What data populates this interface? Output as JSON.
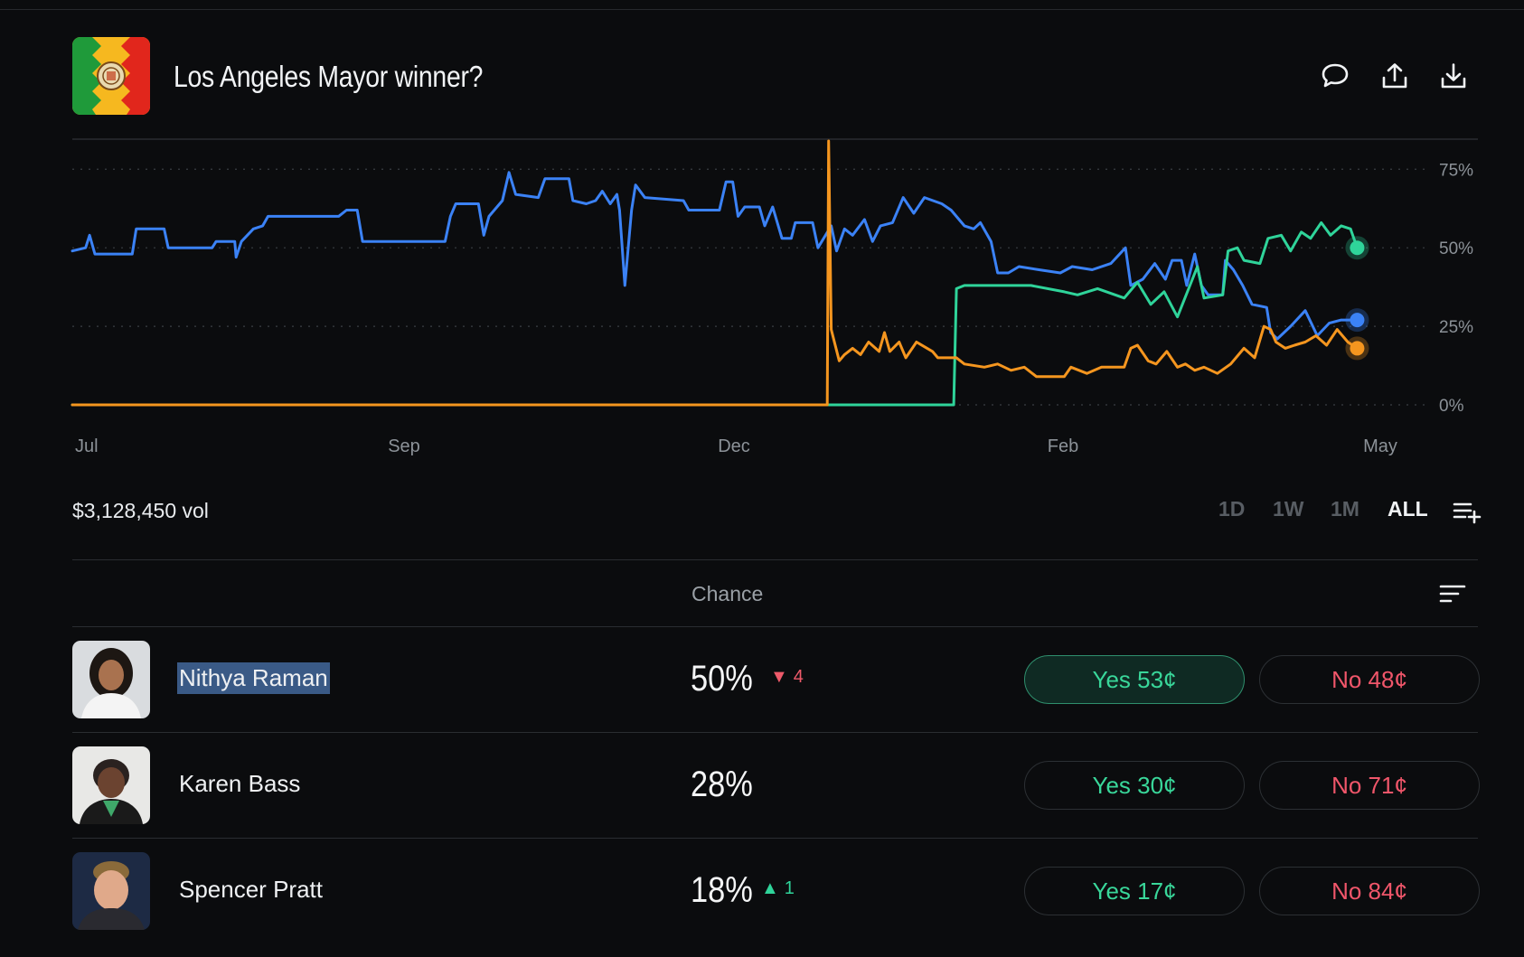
{
  "market": {
    "title": "Los Angeles Mayor winner?",
    "volume": "$3,128,450 vol"
  },
  "header_actions": [
    {
      "name": "comment-icon"
    },
    {
      "name": "share-icon"
    },
    {
      "name": "download-icon"
    }
  ],
  "ranges": [
    {
      "label": "1D",
      "active": false
    },
    {
      "label": "1W",
      "active": false
    },
    {
      "label": "1M",
      "active": false
    },
    {
      "label": "ALL",
      "active": true
    }
  ],
  "table": {
    "chance_header": "Chance"
  },
  "candidates": [
    {
      "name": "Nithya Raman",
      "chance": "50%",
      "delta": "4",
      "delta_dir": "down",
      "yes": "Yes 53¢",
      "no": "No 48¢",
      "selected": true
    },
    {
      "name": "Karen Bass",
      "chance": "28%",
      "delta": "",
      "delta_dir": "",
      "yes": "Yes 30¢",
      "no": "No 71¢",
      "selected": false
    },
    {
      "name": "Spencer Pratt",
      "chance": "18%",
      "delta": "1",
      "delta_dir": "up",
      "yes": "Yes 17¢",
      "no": "No 84¢",
      "selected": false
    }
  ],
  "chart_data": {
    "type": "line",
    "x_ticks": [
      "Jul",
      "Sep",
      "Dec",
      "Feb",
      "May"
    ],
    "y_ticks": [
      "0%",
      "25%",
      "50%",
      "75%"
    ],
    "ylim": [
      0,
      84
    ],
    "grid": true,
    "x_domain": [
      0,
      100
    ],
    "series": [
      {
        "color": "#3b82f6",
        "points": [
          [
            0,
            49
          ],
          [
            1,
            50
          ],
          [
            1.3,
            54
          ],
          [
            1.7,
            48
          ],
          [
            4.5,
            48
          ],
          [
            4.8,
            56
          ],
          [
            6.9,
            56
          ],
          [
            7.2,
            50
          ],
          [
            10.5,
            50
          ],
          [
            10.8,
            52
          ],
          [
            12.2,
            52
          ],
          [
            12.3,
            47
          ],
          [
            12.7,
            52
          ],
          [
            13.6,
            56
          ],
          [
            14.3,
            57
          ],
          [
            14.7,
            60
          ],
          [
            20,
            60
          ],
          [
            20.6,
            62
          ],
          [
            21.4,
            62
          ],
          [
            21.8,
            52
          ],
          [
            28,
            52
          ],
          [
            28.4,
            60
          ],
          [
            28.8,
            64
          ],
          [
            30.5,
            64
          ],
          [
            30.9,
            54
          ],
          [
            31.3,
            60
          ],
          [
            32.3,
            65
          ],
          [
            32.8,
            74
          ],
          [
            33.3,
            67
          ],
          [
            35,
            66
          ],
          [
            35.5,
            72
          ],
          [
            37.3,
            72
          ],
          [
            37.6,
            65
          ],
          [
            38.6,
            64
          ],
          [
            39.3,
            65
          ],
          [
            39.8,
            68
          ],
          [
            40.4,
            64
          ],
          [
            40.9,
            67
          ],
          [
            41.1,
            62
          ],
          [
            41.5,
            38
          ],
          [
            42,
            62
          ],
          [
            42.3,
            70
          ],
          [
            43,
            66
          ],
          [
            45.9,
            65
          ],
          [
            46.3,
            62
          ],
          [
            48.6,
            62
          ],
          [
            49.1,
            71
          ],
          [
            49.6,
            71
          ],
          [
            50,
            60
          ],
          [
            50.5,
            63
          ],
          [
            51.6,
            63
          ],
          [
            52,
            57
          ],
          [
            52.6,
            63
          ],
          [
            53.3,
            53
          ],
          [
            54,
            53
          ],
          [
            54.3,
            58
          ],
          [
            55.6,
            58
          ],
          [
            56,
            50
          ],
          [
            57,
            57
          ],
          [
            57.4,
            49
          ],
          [
            58,
            56
          ],
          [
            58.6,
            54
          ],
          [
            59.5,
            59
          ],
          [
            60.1,
            52
          ],
          [
            60.7,
            57
          ],
          [
            61.6,
            58
          ],
          [
            62.4,
            66
          ],
          [
            63.2,
            61
          ],
          [
            64,
            66
          ],
          [
            65.3,
            64
          ],
          [
            66,
            62
          ],
          [
            67,
            57
          ],
          [
            67.7,
            56
          ],
          [
            68.2,
            58
          ],
          [
            69,
            52
          ],
          [
            69.5,
            42
          ],
          [
            70.3,
            42
          ],
          [
            71.1,
            44
          ],
          [
            72.6,
            43
          ],
          [
            74.2,
            42
          ],
          [
            75.1,
            44
          ],
          [
            76.6,
            43
          ],
          [
            78,
            45
          ],
          [
            79.1,
            50
          ],
          [
            79.5,
            38
          ],
          [
            80.4,
            40
          ],
          [
            81.3,
            45
          ],
          [
            82.1,
            40
          ],
          [
            82.6,
            46
          ],
          [
            83.3,
            46
          ],
          [
            83.7,
            38
          ],
          [
            84.3,
            48
          ],
          [
            84.8,
            38
          ],
          [
            85.3,
            35
          ],
          [
            86.4,
            35
          ],
          [
            86.6,
            46
          ],
          [
            87.2,
            43
          ],
          [
            87.9,
            38
          ],
          [
            88.6,
            32
          ],
          [
            89.7,
            31
          ],
          [
            90,
            23
          ],
          [
            90.5,
            21
          ],
          [
            91.5,
            25
          ],
          [
            92.6,
            30
          ],
          [
            93.5,
            22
          ],
          [
            94.4,
            26
          ],
          [
            95.3,
            27
          ],
          [
            96.5,
            27
          ]
        ]
      },
      {
        "color": "#2fd49a",
        "points": [
          [
            0,
            0
          ],
          [
            66.2,
            0
          ],
          [
            66.4,
            37
          ],
          [
            67,
            38
          ],
          [
            70,
            38
          ],
          [
            72,
            38
          ],
          [
            74.5,
            36
          ],
          [
            75.5,
            35
          ],
          [
            77,
            37
          ],
          [
            79,
            34
          ],
          [
            80,
            39
          ],
          [
            81,
            32
          ],
          [
            82,
            36
          ],
          [
            83,
            28
          ],
          [
            84.5,
            44
          ],
          [
            85,
            34
          ],
          [
            86.4,
            35
          ],
          [
            86.8,
            49
          ],
          [
            87.5,
            50
          ],
          [
            88,
            46
          ],
          [
            89.2,
            45
          ],
          [
            89.8,
            53
          ],
          [
            90.8,
            54
          ],
          [
            91.5,
            49
          ],
          [
            92.3,
            55
          ],
          [
            93,
            53
          ],
          [
            93.8,
            58
          ],
          [
            94.5,
            54
          ],
          [
            95.3,
            57
          ],
          [
            96,
            56
          ],
          [
            96.5,
            50
          ]
        ]
      },
      {
        "color": "#f5961f",
        "points": [
          [
            0,
            0
          ],
          [
            56.7,
            0
          ],
          [
            56.8,
            84
          ],
          [
            57,
            24
          ],
          [
            57.3,
            19
          ],
          [
            57.6,
            14
          ],
          [
            58,
            16
          ],
          [
            58.6,
            18
          ],
          [
            59.2,
            16
          ],
          [
            59.8,
            20
          ],
          [
            60.6,
            17
          ],
          [
            61,
            23
          ],
          [
            61.4,
            17
          ],
          [
            62.1,
            20
          ],
          [
            62.6,
            15
          ],
          [
            63.4,
            20
          ],
          [
            64.6,
            17
          ],
          [
            65,
            15
          ],
          [
            66.1,
            15
          ],
          [
            66.4,
            15
          ],
          [
            67,
            13
          ],
          [
            68.5,
            12
          ],
          [
            69.5,
            13
          ],
          [
            70.5,
            11
          ],
          [
            71.5,
            12
          ],
          [
            72.4,
            9
          ],
          [
            73.4,
            9
          ],
          [
            74.5,
            9
          ],
          [
            75,
            12
          ],
          [
            76.2,
            10
          ],
          [
            77.3,
            12
          ],
          [
            78.1,
            12
          ],
          [
            79,
            12
          ],
          [
            79.5,
            18
          ],
          [
            80,
            19
          ],
          [
            80.8,
            14
          ],
          [
            81.4,
            13
          ],
          [
            82.2,
            17
          ],
          [
            83,
            12
          ],
          [
            83.6,
            13
          ],
          [
            84.3,
            11
          ],
          [
            85,
            12
          ],
          [
            86,
            10
          ],
          [
            87,
            13
          ],
          [
            88,
            18
          ],
          [
            88.8,
            15
          ],
          [
            89.5,
            25
          ],
          [
            90,
            24
          ],
          [
            90.4,
            20
          ],
          [
            91.1,
            18
          ],
          [
            91.8,
            19
          ],
          [
            92.6,
            20
          ],
          [
            93.4,
            22
          ],
          [
            94.2,
            19
          ],
          [
            95,
            24
          ],
          [
            95.8,
            20
          ],
          [
            96.5,
            18
          ]
        ]
      }
    ],
    "endpoints": [
      {
        "color": "#3b82f6",
        "y": 27
      },
      {
        "color": "#2fd49a",
        "y": 50
      },
      {
        "color": "#f5961f",
        "y": 18
      }
    ]
  }
}
